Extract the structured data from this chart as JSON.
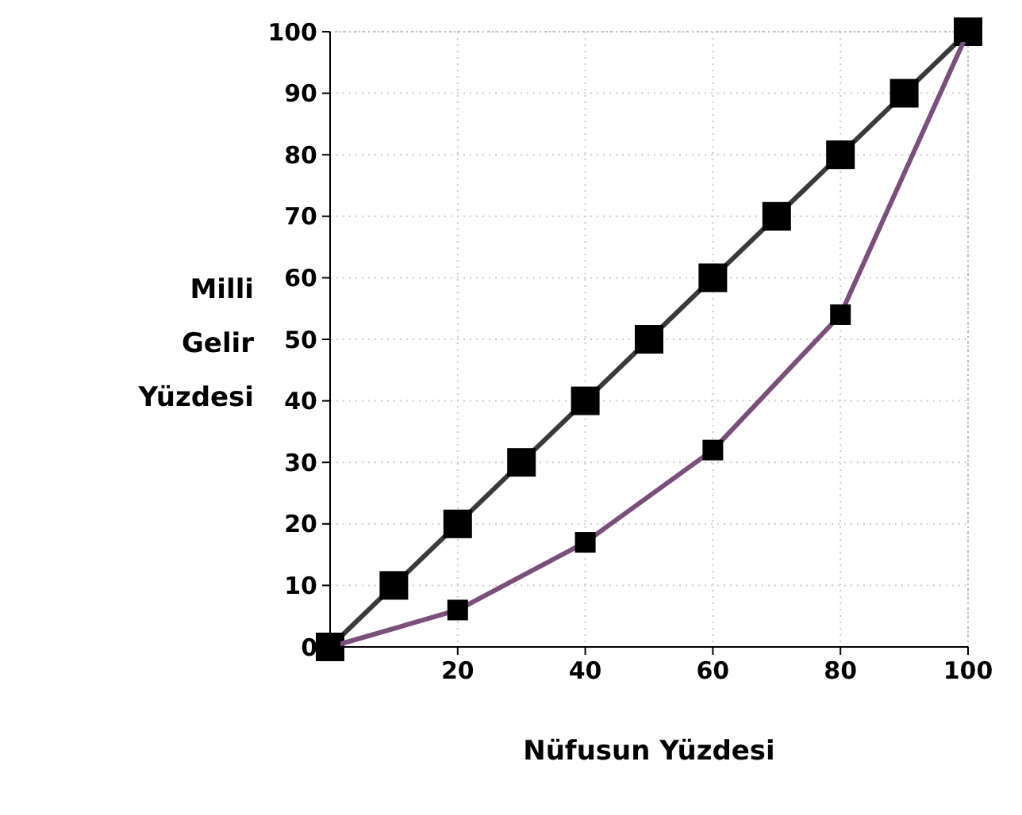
{
  "chart_data": {
    "type": "line",
    "xlabel": "Nüfusun Yüzdesi",
    "ylabel": "Milli Gelir Yüzdesi",
    "xlim": [
      0,
      100
    ],
    "ylim": [
      0,
      100
    ],
    "xticks": [
      {
        "value": 0,
        "label": null
      },
      20,
      40,
      60,
      80,
      100
    ],
    "yticks": [
      0,
      10,
      20,
      30,
      40,
      50,
      60,
      70,
      80,
      90,
      100
    ],
    "grid": true,
    "marker": "square",
    "line_style": "solid",
    "series": [
      {
        "color": "#3a3a3a",
        "x": [
          0,
          10,
          20,
          30,
          40,
          50,
          60,
          70,
          80,
          90,
          100
        ],
        "values": [
          0,
          10,
          20,
          30,
          40,
          50,
          60,
          70,
          80,
          90,
          100
        ]
      },
      {
        "color": "#7b4f7b",
        "x": [
          0,
          20,
          40,
          60,
          80,
          100
        ],
        "values": [
          0,
          6,
          17,
          32,
          54,
          100
        ]
      }
    ]
  }
}
